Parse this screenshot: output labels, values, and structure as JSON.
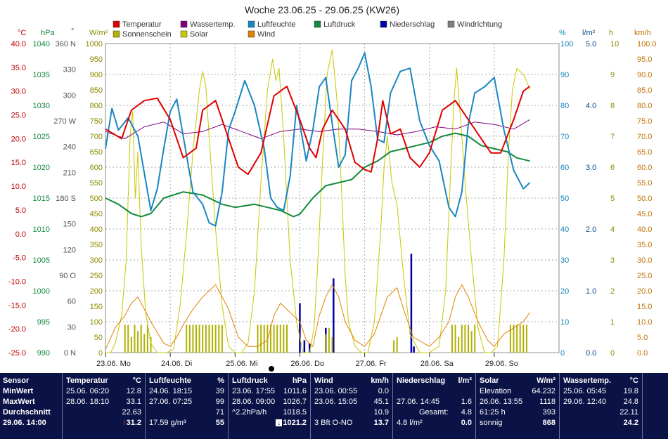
{
  "chart_data": {
    "type": "line",
    "title": "Woche 23.06.25 - 29.06.25 (KW26)",
    "x_ticks": [
      "23.06. Mo",
      "24.06. Di",
      "25.06. Mi",
      "26.06. Do",
      "27.06. Fr",
      "28.06. Sa",
      "29.06. So"
    ],
    "axis_units": {
      "temp": "°C",
      "press": "hPa",
      "dir": "°",
      "solar": "W/m²",
      "hum": "%",
      "rain": "l/m²",
      "sun": "h",
      "wind": "km/h"
    },
    "y_axes": {
      "temp": {
        "range": [
          -25,
          40
        ],
        "ticks": [
          "40.0",
          "35.0",
          "30.0",
          "25.0",
          "20.0",
          "15.0",
          "10.0",
          "5.0",
          "0.0",
          "-5.0",
          "-10.0",
          "-15.0",
          "-20.0",
          "-25.0"
        ]
      },
      "press": {
        "range": [
          990,
          1040
        ],
        "ticks": [
          "1040",
          "1035",
          "1030",
          "1025",
          "1020",
          "1015",
          "1010",
          "1005",
          "1000",
          "995",
          "990"
        ]
      },
      "dir": {
        "range": [
          0,
          360
        ],
        "ticks": [
          "360 N",
          "330",
          "300",
          "270 W",
          "240",
          "210",
          "180 S",
          "150",
          "120",
          "90 O",
          "60",
          "30",
          "0 N"
        ]
      },
      "solar": {
        "range": [
          0,
          1000
        ],
        "ticks": [
          "1000",
          "950",
          "900",
          "850",
          "800",
          "750",
          "700",
          "650",
          "600",
          "550",
          "500",
          "450",
          "400",
          "350",
          "300",
          "250",
          "200",
          "150",
          "100",
          "50",
          "0"
        ]
      },
      "hum": {
        "range": [
          0,
          100
        ],
        "ticks": [
          "100",
          "90",
          "80",
          "70",
          "60",
          "50",
          "40",
          "30",
          "20",
          "10",
          "0"
        ]
      },
      "rain": {
        "range": [
          0,
          5
        ],
        "ticks": [
          "5.0",
          "4.0",
          "3.0",
          "2.0",
          "1.0",
          "0.0"
        ]
      },
      "sun": {
        "range": [
          0,
          10
        ],
        "ticks": [
          "10",
          "9",
          "8",
          "7",
          "6",
          "5",
          "4",
          "3",
          "2",
          "1",
          "0"
        ]
      },
      "wind": {
        "range": [
          0,
          100
        ],
        "ticks": [
          "100.0",
          "95.0",
          "90.0",
          "85.0",
          "80.0",
          "75.0",
          "70.0",
          "65.0",
          "60.0",
          "55.0",
          "50.0",
          "45.0",
          "40.0",
          "35.0",
          "30.0",
          "25.0",
          "20.0",
          "15.0",
          "10.0",
          "5.0",
          "0.0"
        ]
      }
    },
    "legend": [
      {
        "name": "Temperatur",
        "color": "#e00000"
      },
      {
        "name": "Wassertemp.",
        "color": "#800080"
      },
      {
        "name": "Luftfeuchte",
        "color": "#1a86c0"
      },
      {
        "name": "Luftdruck",
        "color": "#138a3c"
      },
      {
        "name": "Niederschlag",
        "color": "#0000aa"
      },
      {
        "name": "Windrichtung",
        "color": "#808080"
      },
      {
        "name": "Sonnenschein",
        "color": "#b0b000"
      },
      {
        "name": "Solar",
        "color": "#c8c800"
      },
      {
        "name": "Wind",
        "color": "#e08000"
      }
    ],
    "series": [
      {
        "name": "Temperatur",
        "axis": "temp",
        "color": "#e00000",
        "t": [
          0,
          0.25,
          0.4,
          0.6,
          0.8,
          1.0,
          1.2,
          1.4,
          1.5,
          1.7,
          1.85,
          2.05,
          2.2,
          2.4,
          2.6,
          2.8,
          3.0,
          3.15,
          3.25,
          3.35,
          3.5,
          3.7,
          3.85,
          4.0,
          4.1,
          4.2,
          4.28,
          4.4,
          4.55,
          4.7,
          4.85,
          5.0,
          5.2,
          5.4,
          5.6,
          5.8,
          5.95,
          6.1,
          6.3,
          6.45,
          6.55
        ],
        "values": [
          22,
          20,
          26,
          28,
          28.5,
          24,
          16,
          18,
          26,
          28,
          22,
          14,
          12.5,
          17,
          29,
          31,
          24,
          18,
          16,
          22,
          26,
          22,
          15,
          13.5,
          13,
          20,
          28,
          21,
          22,
          16,
          14,
          17,
          26,
          28,
          24,
          20,
          17,
          17,
          24,
          30,
          31
        ]
      },
      {
        "name": "Wassertemp.",
        "axis": "temp",
        "color": "#800080",
        "t": [
          0,
          0.3,
          0.6,
          0.9,
          1.2,
          1.5,
          1.8,
          2.1,
          2.4,
          2.7,
          3.0,
          3.3,
          3.6,
          3.9,
          4.2,
          4.5,
          4.8,
          5.1,
          5.4,
          5.7,
          6.0,
          6.3,
          6.55
        ],
        "values": [
          21.5,
          20,
          22.5,
          23.5,
          21,
          21.5,
          23,
          21.5,
          20,
          21.5,
          22,
          21.5,
          22,
          22,
          21.5,
          20.8,
          21.5,
          22.5,
          22,
          23.5,
          23,
          22,
          24
        ]
      },
      {
        "name": "Luftfeuchte",
        "axis": "hum",
        "color": "#1a86c0",
        "t": [
          0,
          0.1,
          0.2,
          0.35,
          0.5,
          0.6,
          0.7,
          0.8,
          0.9,
          1.0,
          1.1,
          1.2,
          1.35,
          1.5,
          1.6,
          1.7,
          1.8,
          1.9,
          2.0,
          2.15,
          2.3,
          2.45,
          2.55,
          2.65,
          2.75,
          2.85,
          2.95,
          3.1,
          3.2,
          3.3,
          3.4,
          3.5,
          3.6,
          3.7,
          3.8,
          3.9,
          4.0,
          4.1,
          4.2,
          4.3,
          4.4,
          4.55,
          4.7,
          4.85,
          5.0,
          5.15,
          5.3,
          5.4,
          5.5,
          5.6,
          5.7,
          5.85,
          6.0,
          6.15,
          6.3,
          6.45,
          6.55
        ],
        "values": [
          66,
          79,
          72,
          76,
          70,
          58,
          46,
          53,
          66,
          78,
          82,
          70,
          52,
          48,
          42,
          41,
          52,
          72,
          78,
          88,
          80,
          66,
          50,
          47,
          46,
          57,
          80,
          62,
          72,
          86,
          89,
          74,
          60,
          64,
          88,
          92,
          97,
          86,
          69,
          68,
          84,
          91,
          92,
          75,
          67,
          62,
          47,
          44,
          52,
          74,
          84,
          86,
          89,
          72,
          59,
          53,
          55
        ]
      },
      {
        "name": "Luftdruck",
        "axis": "press",
        "color": "#138a3c",
        "t": [
          0,
          0.2,
          0.4,
          0.55,
          0.7,
          0.9,
          1.2,
          1.5,
          1.8,
          2.0,
          2.3,
          2.5,
          2.7,
          2.9,
          3.0,
          3.2,
          3.4,
          3.6,
          3.8,
          4.0,
          4.2,
          4.4,
          4.6,
          4.8,
          5.0,
          5.2,
          5.4,
          5.6,
          5.8,
          6.0,
          6.2,
          6.35,
          6.55
        ],
        "values": [
          1015,
          1014,
          1012.5,
          1012,
          1012.5,
          1015,
          1016,
          1015.5,
          1014,
          1013.5,
          1014,
          1013.5,
          1013,
          1012,
          1012.4,
          1015,
          1017,
          1017.5,
          1018,
          1020,
          1021,
          1022.5,
          1023,
          1023.5,
          1024,
          1025,
          1025.5,
          1025,
          1023.5,
          1023,
          1022.5,
          1021.5,
          1021
        ]
      },
      {
        "name": "Wind",
        "axis": "wind",
        "color": "#e08000",
        "t": [
          0,
          0.15,
          0.3,
          0.4,
          0.5,
          0.6,
          0.7,
          0.9,
          1.0,
          1.1,
          1.2,
          1.35,
          1.5,
          1.6,
          1.7,
          1.8,
          1.9,
          2.05,
          2.2,
          2.35,
          2.5,
          2.6,
          2.7,
          2.85,
          3.0,
          3.1,
          3.2,
          3.3,
          3.4,
          3.5,
          3.6,
          3.7,
          3.85,
          4.0,
          4.15,
          4.25,
          4.35,
          4.5,
          4.6,
          4.75,
          5.0,
          5.15,
          5.3,
          5.4,
          5.5,
          5.6,
          5.75,
          5.9,
          6.0,
          6.15,
          6.3,
          6.45,
          6.55
        ],
        "values": [
          1,
          8,
          12,
          16,
          18,
          14,
          10,
          3,
          2,
          5,
          9,
          14,
          18,
          20,
          22,
          18,
          14,
          5,
          2,
          2,
          4,
          12,
          16,
          13,
          10,
          4,
          2,
          12,
          18,
          22,
          18,
          10,
          4,
          2,
          6,
          12,
          18,
          21,
          14,
          5,
          2,
          5,
          10,
          18,
          22,
          18,
          10,
          4,
          2,
          6,
          8,
          10,
          13
        ]
      },
      {
        "name": "Solar",
        "axis": "solar",
        "color": "#c8c800",
        "t": [
          0,
          0.08,
          0.15,
          0.25,
          0.32,
          0.38,
          0.42,
          0.46,
          0.5,
          0.55,
          0.62,
          0.7,
          0.8,
          0.95,
          1.05,
          1.15,
          1.25,
          1.35,
          1.45,
          1.5,
          1.55,
          1.6,
          1.7,
          1.8,
          1.9,
          2.0,
          2.1,
          2.2,
          2.3,
          2.4,
          2.5,
          2.58,
          2.63,
          2.68,
          2.75,
          2.85,
          2.95,
          3.05,
          3.15,
          3.22,
          3.28,
          3.35,
          3.42,
          3.5,
          3.58,
          3.65,
          3.7,
          3.75,
          3.8,
          3.85,
          3.95,
          4.05,
          4.15,
          4.25,
          4.3,
          4.35,
          4.42,
          4.5,
          4.6,
          4.7,
          4.85,
          5.0,
          5.15,
          5.25,
          5.32,
          5.38,
          5.42,
          5.5,
          5.55,
          5.65,
          5.75,
          5.85,
          5.95,
          6.05,
          6.15,
          6.22,
          6.28,
          6.35,
          6.45,
          6.5,
          6.55
        ],
        "values": [
          0,
          0,
          30,
          120,
          300,
          700,
          780,
          500,
          650,
          350,
          130,
          30,
          0,
          0,
          10,
          150,
          380,
          650,
          850,
          910,
          860,
          700,
          400,
          150,
          20,
          0,
          0,
          30,
          200,
          550,
          850,
          950,
          880,
          920,
          700,
          300,
          100,
          0,
          0,
          80,
          300,
          620,
          900,
          980,
          800,
          500,
          250,
          100,
          60,
          20,
          0,
          0,
          100,
          400,
          600,
          700,
          550,
          480,
          250,
          60,
          0,
          0,
          20,
          200,
          550,
          820,
          920,
          700,
          550,
          300,
          80,
          0,
          0,
          20,
          300,
          650,
          850,
          920,
          900,
          880,
          850
        ]
      }
    ],
    "bars": [
      {
        "name": "Niederschlag",
        "axis": "rain",
        "color": "#0000aa",
        "t": [
          3.0,
          3.07,
          3.15,
          3.4,
          3.52,
          4.72,
          4.76
        ],
        "values": [
          0.8,
          0.2,
          0.15,
          0.4,
          1.2,
          1.6,
          0.1
        ]
      },
      {
        "name": "Sonnenschein",
        "axis": "sun",
        "color": "#b0b000",
        "t": [
          0.3,
          0.35,
          0.4,
          0.45,
          0.5,
          0.55,
          0.6,
          0.65,
          0.7,
          1.25,
          1.3,
          1.35,
          1.4,
          1.45,
          1.5,
          1.55,
          1.6,
          1.65,
          1.7,
          1.75,
          1.8,
          2.35,
          2.4,
          2.45,
          2.5,
          2.55,
          2.6,
          2.65,
          2.7,
          2.75,
          2.8,
          3.4,
          3.45,
          3.5,
          4.45,
          4.5,
          5.35,
          5.4,
          5.45,
          5.5,
          5.55,
          5.6,
          5.65,
          5.7,
          6.25,
          6.3,
          6.35,
          6.4,
          6.45,
          6.5
        ],
        "values": [
          0.9,
          0.9,
          0.5,
          0.9,
          0.7,
          0.9,
          0.6,
          0.9,
          0.5,
          0.9,
          0.9,
          0.9,
          0.9,
          0.9,
          0.9,
          0.9,
          0.9,
          0.9,
          0.9,
          0.9,
          0.9,
          0.9,
          0.9,
          0.9,
          0.9,
          0.9,
          0.9,
          0.9,
          0.9,
          0.9,
          0.9,
          0.6,
          0.8,
          0.5,
          0.4,
          0.5,
          0.9,
          0.9,
          0.5,
          0.9,
          0.9,
          0.9,
          0.7,
          0.9,
          0.9,
          0.9,
          0.9,
          0.9,
          0.9,
          0.9
        ]
      }
    ]
  },
  "panel": {
    "sensor": {
      "header": "Sensor",
      "min": "MinWert",
      "max": "MaxWert",
      "avg": "Durchschnitt",
      "now": "29.06. 14:00"
    },
    "temp": {
      "header": "Temperatur",
      "unit": "°C",
      "min_time": "25.06.  06:20",
      "min_val": "12.8",
      "max_time": "28.06.  18:10",
      "max_val": "33.1",
      "avg_val": "22.63",
      "now_val": "31.2"
    },
    "hum": {
      "header": "Luftfeuchte",
      "unit": "%",
      "min_time": "24.06.  18:15",
      "min_val": "39",
      "max_time": "27.06.  07:25",
      "max_val": "99",
      "avg_val": "71",
      "now_extra": "17.59 g/m³",
      "now_val": "55"
    },
    "press": {
      "header": "Luftdruck",
      "unit": "hPa",
      "min_time": "23.06.  17:55",
      "min_val": "1011.6",
      "max_time": "28.06.  09:00",
      "max_val": "1026.7",
      "avg_extra": "^2.2hPa/h",
      "avg_val": "1018.5",
      "now_val": "1021.2"
    },
    "wind": {
      "header": "Wind",
      "unit": "km/h",
      "min_time": "23.06.  00:55",
      "min_val": "0.0",
      "max_time": "23.06.  15:05",
      "max_val": "45.1",
      "avg_val": "10.9",
      "now_extra": "3 Bft O-NO",
      "now_val": "13.7"
    },
    "rain": {
      "header": "Niederschlag",
      "unit": "l/m²",
      "max_time": "27.06.  14:45",
      "max_val": "1.6",
      "avg_label": "Gesamt:",
      "avg_val": "4.8",
      "now_extra": "4.8 l/m²",
      "now_val": "0.0"
    },
    "solar": {
      "header": "Solar",
      "unit": "W/m²",
      "min_label": "Elevation",
      "min_val": "64.232",
      "max_time": "26.06.  13:55",
      "max_val": "1118",
      "avg_label": "61:25 h",
      "avg_val": "393",
      "now_extra": "sonnig",
      "now_val": "868"
    },
    "water": {
      "header": "Wassertemp.",
      "unit": "°C",
      "min_time": "25.06.  05:45",
      "min_val": "19.8",
      "max_time": "29.06.  12:40",
      "max_val": "24.8",
      "avg_val": "22.11",
      "now_val": "24.2"
    }
  }
}
